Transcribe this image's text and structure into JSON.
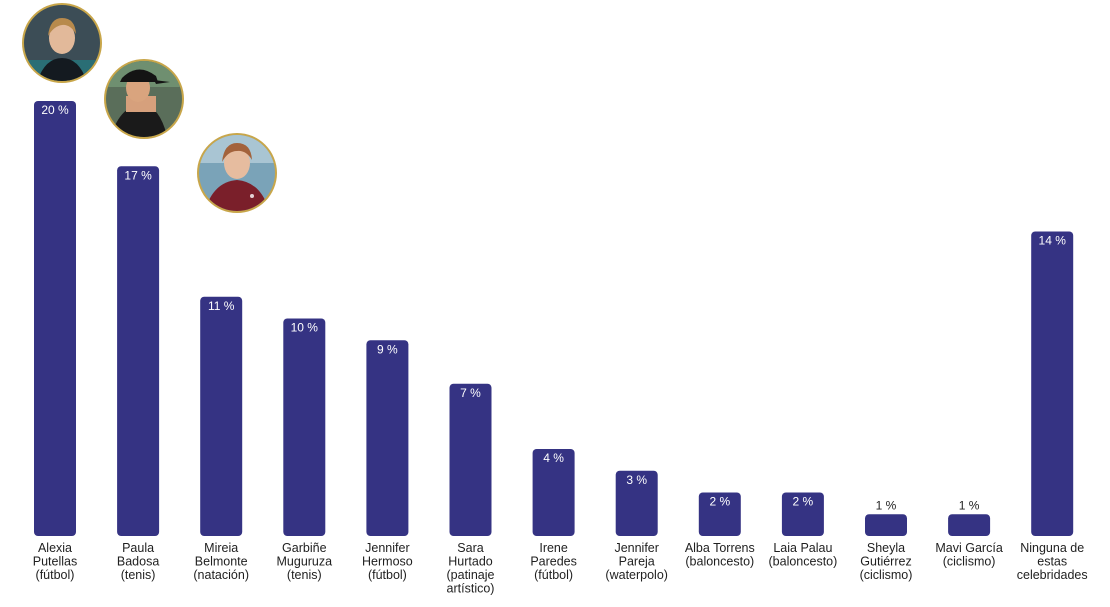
{
  "chart_data": {
    "type": "bar",
    "categories": [
      [
        "Alexia",
        "Putellas",
        "(fútbol)"
      ],
      [
        "Paula",
        "Badosa",
        "(tenis)"
      ],
      [
        "Mireia",
        "Belmonte",
        "(natación)"
      ],
      [
        "Garbiñe",
        "Muguruza",
        "(tenis)"
      ],
      [
        "Jennifer",
        "Hermoso",
        "(fútbol)"
      ],
      [
        "Sara",
        "Hurtado",
        "(patinaje",
        "artístico)"
      ],
      [
        "Irene",
        "Paredes",
        "(fútbol)"
      ],
      [
        "Jennifer",
        "Pareja",
        "(waterpolo)"
      ],
      [
        "Alba Torrens",
        "(baloncesto)"
      ],
      [
        "Laia Palau",
        "(baloncesto)"
      ],
      [
        "Sheyla",
        "Gutiérrez",
        "(ciclismo)"
      ],
      [
        "Mavi García",
        "(ciclismo)"
      ],
      [
        "Ninguna de",
        "estas",
        "celebridades"
      ]
    ],
    "values": [
      20,
      17,
      11,
      10,
      9,
      7,
      4,
      3,
      2,
      2,
      1,
      1,
      14
    ],
    "value_labels": [
      "20 %",
      "17 %",
      "11 %",
      "10 %",
      "9 %",
      "7 %",
      "4 %",
      "3 %",
      "2 %",
      "2 %",
      "1 %",
      "1 %",
      "14 %"
    ],
    "ylim": [
      0,
      20
    ],
    "bar_color": "#353383",
    "grid": false,
    "legend": "none",
    "photos": [
      {
        "bar_index": 0,
        "description": "photo of a woman with blonde hair pulled back, dark sports jacket"
      },
      {
        "bar_index": 1,
        "description": "photo of a woman in a black cap playing tennis"
      },
      {
        "bar_index": 2,
        "description": "photo of a smiling woman in a maroon polo shirt"
      }
    ]
  }
}
